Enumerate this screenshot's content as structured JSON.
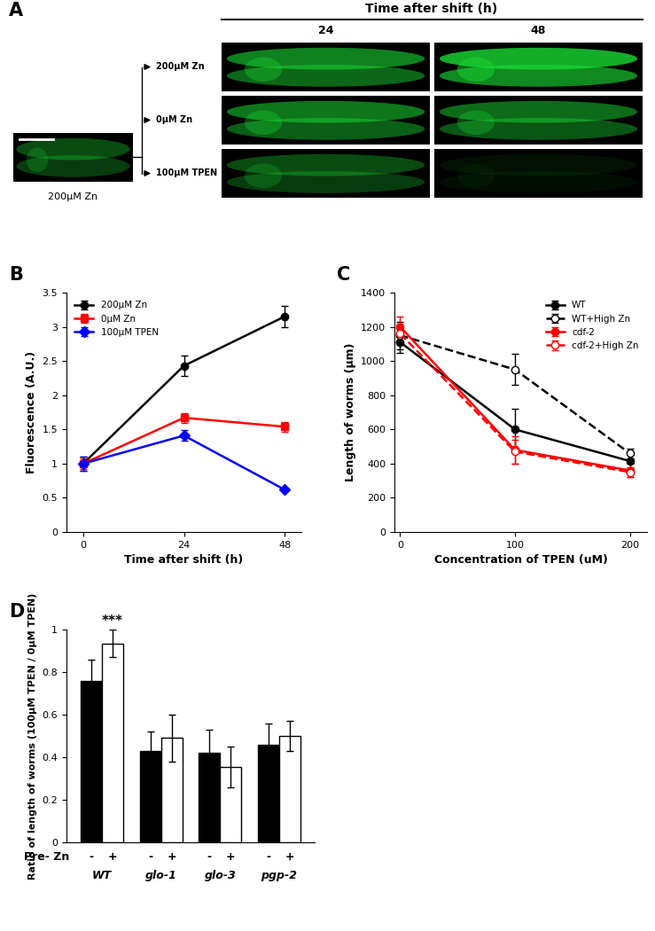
{
  "panel_a": {
    "panel_label": "A",
    "header": "Time after shift (h)",
    "columns": [
      "24",
      "48"
    ],
    "start_condition": "200μM Zn",
    "rows": [
      "200μM Zn",
      "0μM Zn",
      "100μM TPEN"
    ]
  },
  "chart_data": [
    {
      "type": "line",
      "panel_label": "B",
      "x_label": "Time after shift (h)",
      "y_label": "Fluorescence (A.U.)",
      "x": [
        0,
        24,
        48
      ],
      "xlim": [
        -4,
        52
      ],
      "xticks": [
        0,
        24,
        48
      ],
      "ylim": [
        0,
        3.5
      ],
      "yticks": [
        0,
        0.5,
        1,
        1.5,
        2,
        2.5,
        3,
        3.5
      ],
      "legend": "upper left",
      "series": [
        {
          "name": "200μM Zn",
          "color": "#000000",
          "marker": "circle",
          "line_style": "solid",
          "values": [
            1,
            2.43,
            3.15
          ],
          "errors": [
            0.1,
            0.15,
            0.15
          ]
        },
        {
          "name": "0μM Zn",
          "color": "#ff0000",
          "marker": "square",
          "line_style": "solid",
          "values": [
            1,
            1.67,
            1.54
          ],
          "errors": [
            0.08,
            0.07,
            0.07
          ]
        },
        {
          "name": "100μM TPEN",
          "color": "#0000ff",
          "marker": "diamond",
          "line_style": "solid",
          "values": [
            1,
            1.41,
            0.62
          ],
          "errors": [
            0.1,
            0.08,
            0.03
          ]
        }
      ]
    },
    {
      "type": "line",
      "panel_label": "C",
      "x_label": "Concentration of TPEN (uM)",
      "y_label": "Length of worms (μm)",
      "x": [
        0,
        100,
        200
      ],
      "xlim": [
        -5,
        215
      ],
      "xticks": [
        0,
        100,
        200
      ],
      "ylim": [
        0,
        1400
      ],
      "yticks": [
        0,
        200,
        400,
        600,
        800,
        1000,
        1200,
        1400
      ],
      "legend": "upper right",
      "series": [
        {
          "name": "WT",
          "color": "#000000",
          "marker": "circle",
          "line_style": "solid",
          "values": [
            1110,
            600,
            415
          ],
          "errors": [
            60,
            120,
            40
          ]
        },
        {
          "name": "WT+High Zn",
          "color": "#000000",
          "marker": "circle_open",
          "line_style": "dashed",
          "values": [
            1150,
            950,
            460
          ],
          "errors": [
            80,
            90,
            30
          ]
        },
        {
          "name": "cdf-2",
          "color": "#ff0000",
          "marker": "circle",
          "line_style": "solid",
          "values": [
            1200,
            480,
            360
          ],
          "errors": [
            60,
            80,
            40
          ]
        },
        {
          "name": "cdf-2+High Zn",
          "color": "#ff0000",
          "marker": "circle_open",
          "line_style": "dashed",
          "values": [
            1160,
            470,
            350
          ],
          "errors": [
            60,
            70,
            30
          ]
        }
      ]
    },
    {
      "type": "bar",
      "panel_label": "D",
      "y_label": "Ratio of length of worms (100μM TPEN / 0μM TPEN)",
      "categories": [
        "WT",
        "glo-1",
        "glo-3",
        "pgp-2"
      ],
      "group_label": "Pre- Zn",
      "ylim": [
        0,
        1
      ],
      "yticks": [
        0,
        0.2,
        0.4,
        0.6,
        0.8,
        1
      ],
      "series": [
        {
          "name": "-",
          "color": "#000000",
          "values": [
            0.76,
            0.43,
            0.42,
            0.46
          ],
          "errors": [
            0.1,
            0.09,
            0.11,
            0.1
          ]
        },
        {
          "name": "+",
          "color": "#ffffff",
          "values": [
            0.935,
            0.49,
            0.355,
            0.5
          ],
          "errors": [
            0.065,
            0.11,
            0.095,
            0.07
          ]
        }
      ],
      "annotations": [
        {
          "text": "***",
          "category": "WT",
          "series": "+"
        }
      ]
    }
  ]
}
